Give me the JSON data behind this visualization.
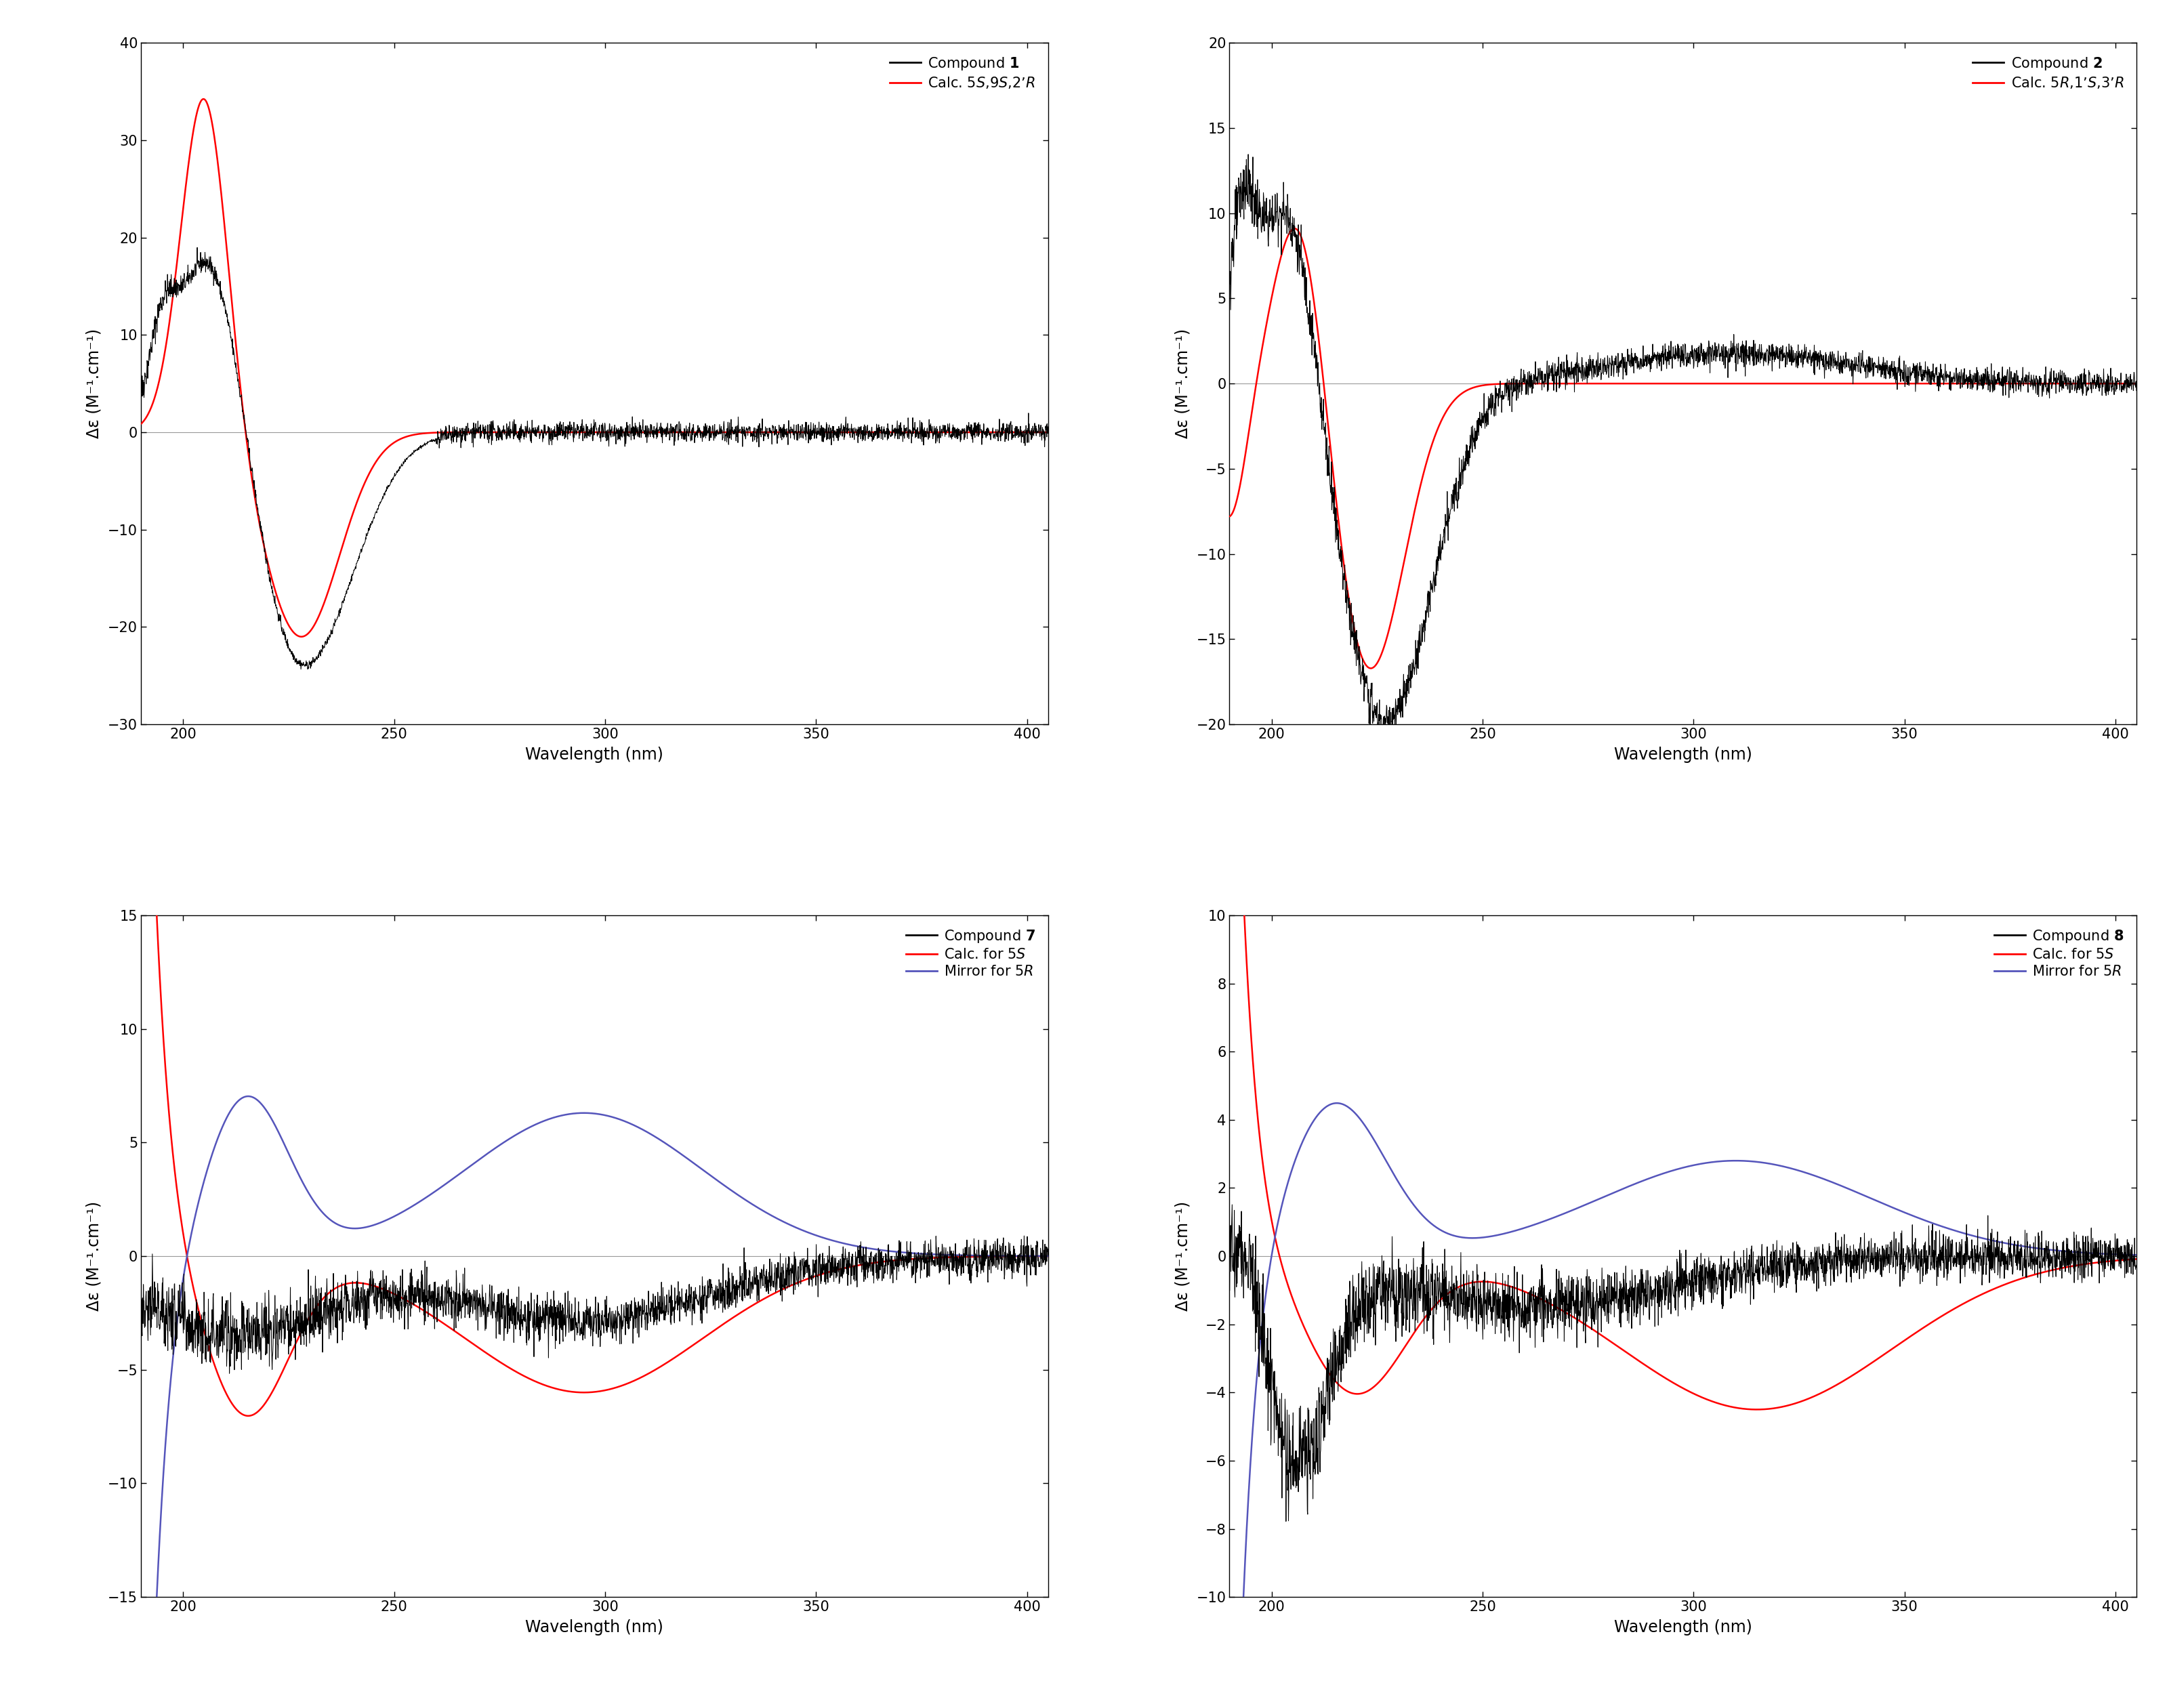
{
  "panels": [
    {
      "legend": [
        {
          "label": "Compound $\\mathbf{1}$",
          "color": "black"
        },
        {
          "label": "Calc. 5$S$,9$S$,2’$R$",
          "color": "red"
        }
      ],
      "ylim": [
        -30,
        40
      ],
      "yticks": [
        -30,
        -20,
        -10,
        0,
        10,
        20,
        30,
        40
      ],
      "xlim": [
        190,
        405
      ],
      "xticks": [
        200,
        250,
        300,
        350,
        400
      ]
    },
    {
      "legend": [
        {
          "label": "Compound $\\mathbf{2}$",
          "color": "black"
        },
        {
          "label": "Calc. 5$R$,1’$S$,3’$R$",
          "color": "red"
        }
      ],
      "ylim": [
        -20,
        20
      ],
      "yticks": [
        -20,
        -15,
        -10,
        -5,
        0,
        5,
        10,
        15,
        20
      ],
      "xlim": [
        190,
        405
      ],
      "xticks": [
        200,
        250,
        300,
        350,
        400
      ]
    },
    {
      "legend": [
        {
          "label": "Compound $\\mathbf{7}$",
          "color": "black"
        },
        {
          "label": "Calc. for 5$S$",
          "color": "red"
        },
        {
          "label": "Mirror for 5$R$",
          "color": "#5555bb"
        }
      ],
      "ylim": [
        -15,
        15
      ],
      "yticks": [
        -15,
        -10,
        -5,
        0,
        5,
        10,
        15
      ],
      "xlim": [
        190,
        405
      ],
      "xticks": [
        200,
        250,
        300,
        350,
        400
      ]
    },
    {
      "legend": [
        {
          "label": "Compound $\\mathbf{8}$",
          "color": "black"
        },
        {
          "label": "Calc. for 5$S$",
          "color": "red"
        },
        {
          "label": "Mirror for 5$R$",
          "color": "#5555bb"
        }
      ],
      "ylim": [
        -10,
        10
      ],
      "yticks": [
        -10,
        -8,
        -6,
        -4,
        -2,
        0,
        2,
        4,
        6,
        8,
        10
      ],
      "xlim": [
        190,
        405
      ],
      "xticks": [
        200,
        250,
        300,
        350,
        400
      ]
    }
  ],
  "xlabel": "Wavelength (nm)",
  "ylabel": "Δε (M⁻¹.cm⁻¹)"
}
